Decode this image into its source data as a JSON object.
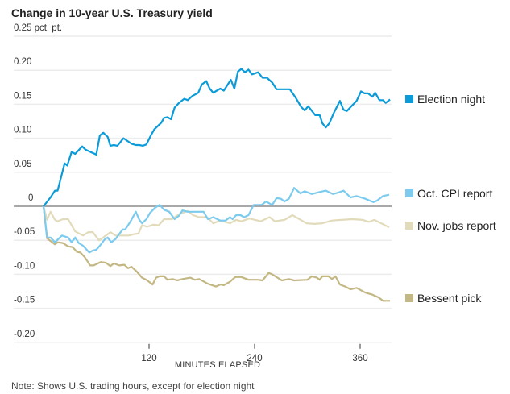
{
  "chart_data": {
    "type": "line",
    "title": "Change in 10-year U.S. Treasury yield",
    "xlabel": "MINUTES ELAPSED",
    "ylabel": "",
    "y_unit_label": "0.25 pct. pt.",
    "note": "Note: Shows U.S. trading hours, except for election night",
    "xlim": [
      0,
      395
    ],
    "ylim": [
      -0.2,
      0.25
    ],
    "x_ticks": [
      120,
      240,
      360
    ],
    "x_tick_labels": [
      "120",
      "240",
      "360"
    ],
    "y_ticks": [
      0.25,
      0.2,
      0.15,
      0.1,
      0.05,
      0,
      -0.05,
      -0.1,
      -0.15,
      -0.2
    ],
    "y_tick_labels": [
      "0.25 pct. pt.",
      "0.20",
      "0.15",
      "0.10",
      "0.05",
      "0",
      "-0.05",
      "-0.10",
      "-0.15",
      "-0.20"
    ],
    "grid": true,
    "legend_placement": "right, labels at line ends",
    "series": [
      {
        "name": "Election night",
        "color": "#0a9bd8",
        "points": [
          [
            0,
            0
          ],
          [
            8,
            0.013
          ],
          [
            13,
            0.023
          ],
          [
            16,
            0.023
          ],
          [
            24,
            0.063
          ],
          [
            27,
            0.06
          ],
          [
            32,
            0.08
          ],
          [
            36,
            0.077
          ],
          [
            44,
            0.088
          ],
          [
            48,
            0.083
          ],
          [
            60,
            0.076
          ],
          [
            64,
            0.104
          ],
          [
            68,
            0.108
          ],
          [
            73,
            0.102
          ],
          [
            76,
            0.089
          ],
          [
            80,
            0.09
          ],
          [
            84,
            0.089
          ],
          [
            91,
            0.1
          ],
          [
            100,
            0.092
          ],
          [
            105,
            0.09
          ],
          [
            109,
            0.09
          ],
          [
            113,
            0.089
          ],
          [
            117,
            0.091
          ],
          [
            122,
            0.104
          ],
          [
            126,
            0.113
          ],
          [
            134,
            0.123
          ],
          [
            137,
            0.13
          ],
          [
            141,
            0.131
          ],
          [
            145,
            0.128
          ],
          [
            149,
            0.145
          ],
          [
            154,
            0.152
          ],
          [
            160,
            0.158
          ],
          [
            164,
            0.156
          ],
          [
            169,
            0.162
          ],
          [
            176,
            0.167
          ],
          [
            180,
            0.179
          ],
          [
            185,
            0.184
          ],
          [
            189,
            0.173
          ],
          [
            193,
            0.167
          ],
          [
            201,
            0.173
          ],
          [
            205,
            0.17
          ],
          [
            213,
            0.186
          ],
          [
            217,
            0.173
          ],
          [
            221,
            0.198
          ],
          [
            225,
            0.202
          ],
          [
            229,
            0.197
          ],
          [
            233,
            0.201
          ],
          [
            237,
            0.194
          ],
          [
            244,
            0.197
          ],
          [
            249,
            0.189
          ],
          [
            254,
            0.189
          ],
          [
            260,
            0.182
          ],
          [
            265,
            0.172
          ],
          [
            280,
            0.172
          ],
          [
            286,
            0.161
          ],
          [
            293,
            0.146
          ],
          [
            297,
            0.141
          ],
          [
            301,
            0.147
          ],
          [
            309,
            0.134
          ],
          [
            314,
            0.134
          ],
          [
            317,
            0.122
          ],
          [
            321,
            0.116
          ],
          [
            325,
            0.122
          ],
          [
            330,
            0.137
          ],
          [
            337,
            0.155
          ],
          [
            341,
            0.142
          ],
          [
            345,
            0.14
          ],
          [
            350,
            0.147
          ],
          [
            356,
            0.155
          ],
          [
            361,
            0.169
          ],
          [
            365,
            0.166
          ],
          [
            369,
            0.166
          ],
          [
            374,
            0.161
          ],
          [
            377,
            0.167
          ],
          [
            382,
            0.156
          ],
          [
            386,
            0.156
          ],
          [
            389,
            0.152
          ],
          [
            394,
            0.157
          ]
        ]
      },
      {
        "name": "Oct. CPI report",
        "color": "#7ccbee",
        "points": [
          [
            0,
            0
          ],
          [
            4,
            -0.046
          ],
          [
            8,
            -0.046
          ],
          [
            13,
            -0.053
          ],
          [
            21,
            -0.043
          ],
          [
            28,
            -0.046
          ],
          [
            32,
            -0.053
          ],
          [
            36,
            -0.046
          ],
          [
            40,
            -0.054
          ],
          [
            45,
            -0.058
          ],
          [
            52,
            -0.068
          ],
          [
            56,
            -0.065
          ],
          [
            60,
            -0.064
          ],
          [
            64,
            -0.058
          ],
          [
            70,
            -0.048
          ],
          [
            73,
            -0.046
          ],
          [
            77,
            -0.053
          ],
          [
            82,
            -0.048
          ],
          [
            90,
            -0.034
          ],
          [
            93,
            -0.034
          ],
          [
            99,
            -0.022
          ],
          [
            105,
            -0.008
          ],
          [
            109,
            -0.02
          ],
          [
            112,
            -0.025
          ],
          [
            117,
            -0.019
          ],
          [
            121,
            -0.01
          ],
          [
            127,
            -0.002
          ],
          [
            132,
            0.002
          ],
          [
            137,
            -0.005
          ],
          [
            143,
            -0.008
          ],
          [
            149,
            -0.019
          ],
          [
            154,
            -0.014
          ],
          [
            158,
            -0.006
          ],
          [
            164,
            -0.008
          ],
          [
            182,
            -0.008
          ],
          [
            187,
            -0.019
          ],
          [
            193,
            -0.016
          ],
          [
            201,
            -0.021
          ],
          [
            207,
            -0.021
          ],
          [
            212,
            -0.016
          ],
          [
            215,
            -0.019
          ],
          [
            219,
            -0.013
          ],
          [
            224,
            -0.013
          ],
          [
            228,
            -0.016
          ],
          [
            233,
            -0.013
          ],
          [
            239,
            0.002
          ],
          [
            244,
            0.002
          ],
          [
            248,
            0.002
          ],
          [
            253,
            0.007
          ],
          [
            260,
            0.002
          ],
          [
            265,
            0.012
          ],
          [
            270,
            0.011
          ],
          [
            274,
            0.007
          ],
          [
            279,
            0.011
          ],
          [
            285,
            0.027
          ],
          [
            292,
            0.019
          ],
          [
            297,
            0.022
          ],
          [
            305,
            0.018
          ],
          [
            314,
            0.021
          ],
          [
            321,
            0.023
          ],
          [
            329,
            0.018
          ],
          [
            335,
            0.02
          ],
          [
            341,
            0.023
          ],
          [
            349,
            0.013
          ],
          [
            356,
            0.015
          ],
          [
            366,
            0.011
          ],
          [
            375,
            0.006
          ],
          [
            379,
            0.008
          ],
          [
            386,
            0.015
          ],
          [
            393,
            0.017
          ]
        ]
      },
      {
        "name": "Nov. jobs report",
        "color": "#e2dbbb",
        "points": [
          [
            0,
            0
          ],
          [
            4,
            -0.02
          ],
          [
            8,
            -0.008
          ],
          [
            13,
            -0.02
          ],
          [
            16,
            -0.022
          ],
          [
            22,
            -0.019
          ],
          [
            28,
            -0.019
          ],
          [
            36,
            -0.037
          ],
          [
            45,
            -0.043
          ],
          [
            51,
            -0.038
          ],
          [
            56,
            -0.038
          ],
          [
            63,
            -0.05
          ],
          [
            68,
            -0.046
          ],
          [
            76,
            -0.038
          ],
          [
            82,
            -0.043
          ],
          [
            97,
            -0.043
          ],
          [
            103,
            -0.041
          ],
          [
            108,
            -0.04
          ],
          [
            112,
            -0.028
          ],
          [
            118,
            -0.03
          ],
          [
            125,
            -0.027
          ],
          [
            131,
            -0.028
          ],
          [
            137,
            -0.019
          ],
          [
            146,
            -0.019
          ],
          [
            155,
            -0.011
          ],
          [
            164,
            -0.007
          ],
          [
            170,
            -0.013
          ],
          [
            177,
            -0.016
          ],
          [
            186,
            -0.016
          ],
          [
            193,
            -0.025
          ],
          [
            201,
            -0.021
          ],
          [
            212,
            -0.025
          ],
          [
            219,
            -0.02
          ],
          [
            225,
            -0.022
          ],
          [
            234,
            -0.018
          ],
          [
            247,
            -0.022
          ],
          [
            257,
            -0.016
          ],
          [
            263,
            -0.022
          ],
          [
            274,
            -0.02
          ],
          [
            283,
            -0.013
          ],
          [
            291,
            -0.019
          ],
          [
            299,
            -0.025
          ],
          [
            308,
            -0.026
          ],
          [
            317,
            -0.025
          ],
          [
            328,
            -0.021
          ],
          [
            338,
            -0.02
          ],
          [
            351,
            -0.019
          ],
          [
            363,
            -0.02
          ],
          [
            370,
            -0.023
          ],
          [
            376,
            -0.02
          ],
          [
            384,
            -0.025
          ],
          [
            393,
            -0.031
          ]
        ]
      },
      {
        "name": "Bessent pick",
        "color": "#c3b784",
        "points": [
          [
            0,
            0
          ],
          [
            4,
            -0.047
          ],
          [
            13,
            -0.056
          ],
          [
            16,
            -0.053
          ],
          [
            22,
            -0.054
          ],
          [
            28,
            -0.059
          ],
          [
            33,
            -0.06
          ],
          [
            38,
            -0.067
          ],
          [
            42,
            -0.068
          ],
          [
            47,
            -0.075
          ],
          [
            53,
            -0.087
          ],
          [
            57,
            -0.087
          ],
          [
            65,
            -0.082
          ],
          [
            71,
            -0.083
          ],
          [
            76,
            -0.088
          ],
          [
            80,
            -0.084
          ],
          [
            86,
            -0.087
          ],
          [
            92,
            -0.086
          ],
          [
            96,
            -0.091
          ],
          [
            100,
            -0.089
          ],
          [
            106,
            -0.096
          ],
          [
            112,
            -0.105
          ],
          [
            117,
            -0.108
          ],
          [
            124,
            -0.115
          ],
          [
            128,
            -0.105
          ],
          [
            132,
            -0.103
          ],
          [
            137,
            -0.103
          ],
          [
            141,
            -0.108
          ],
          [
            147,
            -0.107
          ],
          [
            152,
            -0.109
          ],
          [
            158,
            -0.107
          ],
          [
            167,
            -0.105
          ],
          [
            172,
            -0.108
          ],
          [
            177,
            -0.107
          ],
          [
            187,
            -0.114
          ],
          [
            196,
            -0.118
          ],
          [
            201,
            -0.115
          ],
          [
            205,
            -0.116
          ],
          [
            212,
            -0.111
          ],
          [
            218,
            -0.104
          ],
          [
            225,
            -0.104
          ],
          [
            233,
            -0.108
          ],
          [
            244,
            -0.108
          ],
          [
            249,
            -0.109
          ],
          [
            256,
            -0.098
          ],
          [
            260,
            -0.1
          ],
          [
            271,
            -0.109
          ],
          [
            279,
            -0.107
          ],
          [
            285,
            -0.109
          ],
          [
            300,
            -0.108
          ],
          [
            305,
            -0.103
          ],
          [
            311,
            -0.105
          ],
          [
            314,
            -0.108
          ],
          [
            317,
            -0.103
          ],
          [
            324,
            -0.103
          ],
          [
            328,
            -0.107
          ],
          [
            332,
            -0.103
          ],
          [
            337,
            -0.115
          ],
          [
            343,
            -0.118
          ],
          [
            349,
            -0.122
          ],
          [
            356,
            -0.12
          ],
          [
            366,
            -0.127
          ],
          [
            374,
            -0.13
          ],
          [
            381,
            -0.134
          ],
          [
            386,
            -0.139
          ],
          [
            394,
            -0.139
          ]
        ]
      }
    ]
  }
}
